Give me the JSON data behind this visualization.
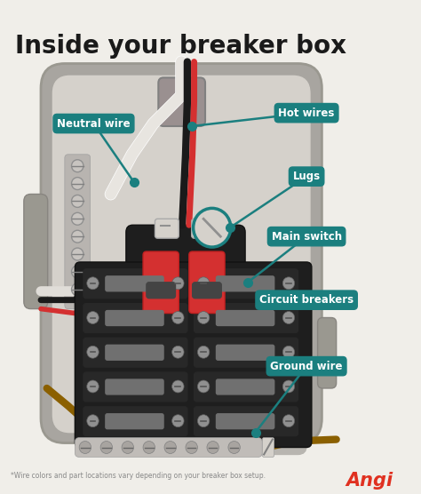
{
  "title": "Inside your breaker box",
  "footnote": "*Wire colors and part locations vary depending on your breaker box setup.",
  "angi_text": "Angi",
  "bg_color": "#f0eee9",
  "title_color": "#1a1a1a",
  "label_bg_color": "#1b7f7f",
  "label_text_color": "#ffffff",
  "angi_color": "#e03020",
  "footnote_color": "#888888",
  "box_outer_color": "#9a9890",
  "box_inner_color": "#d5d1cb",
  "box_shadow_color": "#c0bdb8",
  "breaker_dark": "#222222",
  "breaker_switch": "#888888",
  "red_switch": "#d43030",
  "lug_circle_color": "#e0ddd8",
  "ground_wire_color": "#8B6000",
  "teal_line_color": "#1b7f7f"
}
